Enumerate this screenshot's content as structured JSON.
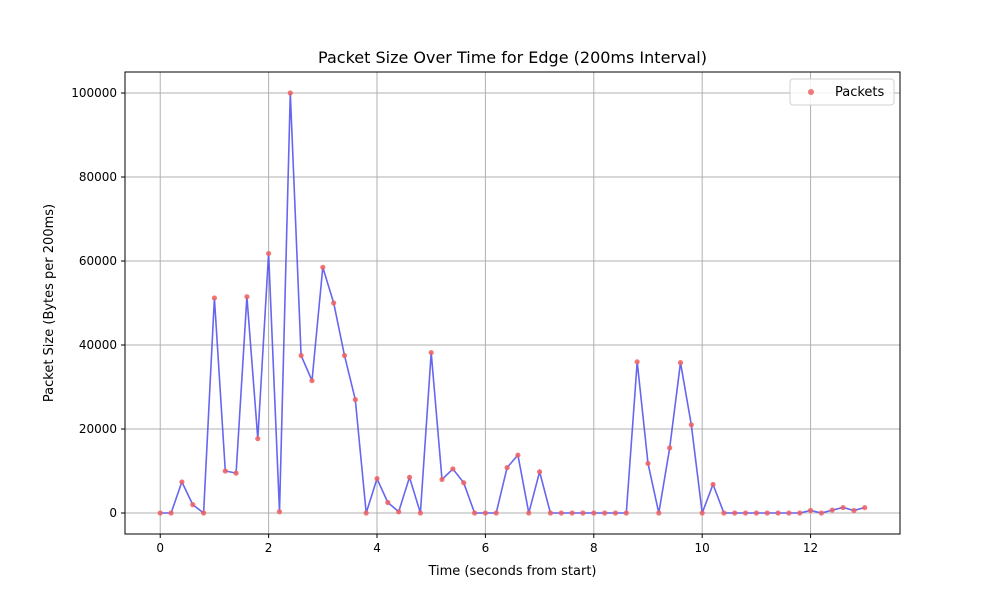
{
  "chart_data": {
    "type": "line",
    "title": "Packet Size Over Time for Edge (200ms Interval)",
    "xlabel": "Time (seconds from start)",
    "ylabel": "Packet Size (Bytes per 200ms)",
    "xlim": [
      -0.65,
      13.65
    ],
    "ylim": [
      -5000,
      105000
    ],
    "xticks": [
      0,
      2,
      4,
      6,
      8,
      10,
      12
    ],
    "yticks": [
      0,
      20000,
      40000,
      60000,
      80000,
      100000
    ],
    "grid": true,
    "legend": {
      "placement": "top-right",
      "entries": [
        "Packets"
      ]
    },
    "line_color": "#5555ee",
    "marker_color": "#f06060",
    "series": [
      {
        "name": "Packets",
        "x": [
          0,
          0.2,
          0.4,
          0.6,
          0.8,
          1.0,
          1.2,
          1.4,
          1.6,
          1.8,
          2.0,
          2.2,
          2.4,
          2.6,
          2.8,
          3.0,
          3.2,
          3.4,
          3.6,
          3.8,
          4.0,
          4.2,
          4.4,
          4.6,
          4.8,
          5.0,
          5.2,
          5.4,
          5.6,
          5.8,
          6.0,
          6.2,
          6.4,
          6.6,
          6.8,
          7.0,
          7.2,
          7.4,
          7.6,
          7.8,
          8.0,
          8.2,
          8.4,
          8.6,
          8.8,
          9.0,
          9.2,
          9.4,
          9.6,
          9.8,
          10.0,
          10.2,
          10.4,
          10.6,
          10.8,
          11.0,
          11.2,
          11.4,
          11.6,
          11.8,
          12.0,
          12.2,
          12.4,
          12.6,
          12.8,
          13.0
        ],
        "y": [
          0,
          0,
          7400,
          2000,
          0,
          51200,
          10000,
          9500,
          51500,
          17700,
          61800,
          300,
          100000,
          37500,
          31500,
          58500,
          50000,
          37500,
          27000,
          0,
          8200,
          2500,
          300,
          8500,
          0,
          38200,
          8000,
          10500,
          7200,
          0,
          0,
          0,
          10800,
          13800,
          0,
          9800,
          0,
          0,
          0,
          0,
          0,
          0,
          0,
          0,
          36000,
          11800,
          0,
          15500,
          35800,
          21000,
          0,
          6800,
          0,
          0,
          0,
          0,
          0,
          0,
          0,
          0,
          600,
          0,
          700,
          1300,
          600,
          1300
        ]
      }
    ]
  }
}
